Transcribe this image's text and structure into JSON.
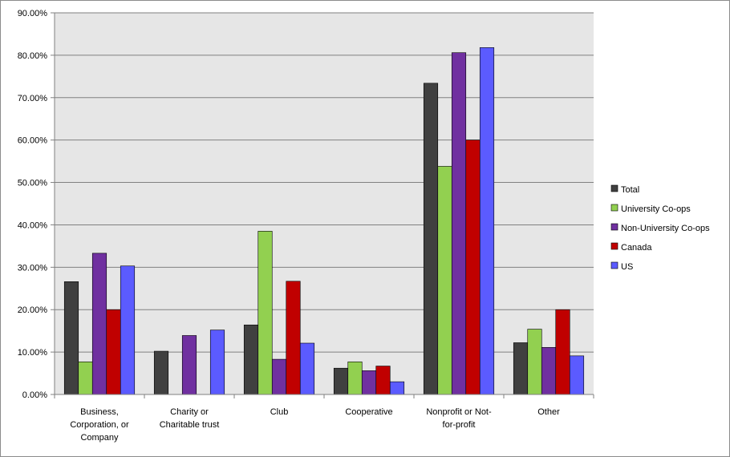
{
  "chart_data": {
    "type": "bar",
    "title": "",
    "xlabel": "",
    "ylabel": "",
    "ylim": [
      0,
      90
    ],
    "y_tick_step": 10,
    "y_tick_format": "percent_2dp",
    "grid": true,
    "legend_position": "right",
    "categories": [
      [
        "Business,",
        "Corporation, or",
        "Company"
      ],
      [
        "Charity or",
        "Charitable trust"
      ],
      [
        "Club"
      ],
      [
        "Cooperative"
      ],
      [
        "Nonprofit or Not-",
        "for-profit"
      ],
      [
        "Other"
      ]
    ],
    "series": [
      {
        "name": "Total",
        "color": "#404040",
        "values": [
          26.6,
          10.2,
          16.4,
          6.2,
          73.4,
          12.2
        ]
      },
      {
        "name": "University Co-ops",
        "color": "#92d050",
        "values": [
          7.7,
          0,
          38.5,
          7.7,
          53.8,
          15.4
        ]
      },
      {
        "name": "Non-University Co-ops",
        "color": "#7030a0",
        "values": [
          33.3,
          13.9,
          8.3,
          5.6,
          80.6,
          11.1
        ]
      },
      {
        "name": "Canada",
        "color": "#c00000",
        "values": [
          20.0,
          0,
          26.7,
          6.7,
          60.0,
          20.0
        ]
      },
      {
        "name": "US",
        "color": "#5b5bff",
        "values": [
          30.3,
          15.2,
          12.1,
          3.0,
          81.8,
          9.1
        ]
      }
    ]
  }
}
